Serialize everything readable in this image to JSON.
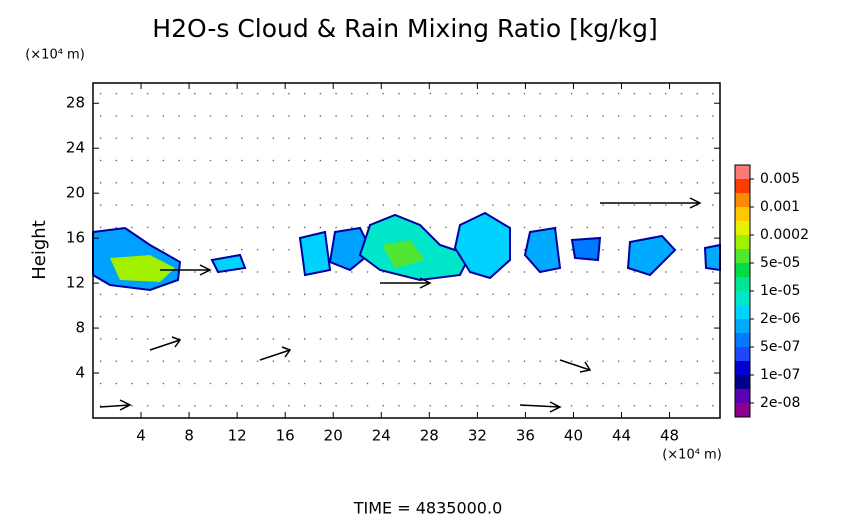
{
  "chart_data": {
    "type": "contour",
    "title": "H2O-s Cloud & Rain Mixing Ratio [kg/kg]",
    "y_label": "Height",
    "y_unit": "(×10⁴ m)",
    "x_unit": "(×10⁴ m)",
    "time_label": "TIME = 4835000.0",
    "xlim": [
      0,
      52.2
    ],
    "ylim": [
      0,
      29.8
    ],
    "xticks": [
      4,
      8,
      12,
      16,
      20,
      24,
      28,
      32,
      36,
      40,
      44,
      48
    ],
    "yticks": [
      4,
      8,
      12,
      16,
      20,
      24,
      28
    ],
    "colorbar": {
      "colors": [
        "#8b008b",
        "#5a00b4",
        "#00008b",
        "#0000d2",
        "#1e46ff",
        "#0078ff",
        "#00aaff",
        "#00d2ff",
        "#00e6c8",
        "#00e696",
        "#00dc46",
        "#50e632",
        "#a0f000",
        "#e6f000",
        "#ffc800",
        "#ff8c00",
        "#ff3c00",
        "#ff7878"
      ],
      "levels": [
        {
          "value": 2e-08,
          "label": "2e-08"
        },
        {
          "value": 1e-07,
          "label": "1e-07"
        },
        {
          "value": 5e-07,
          "label": "5e-07"
        },
        {
          "value": 2e-06,
          "label": "2e-06"
        },
        {
          "value": 1e-05,
          "label": "1e-05"
        },
        {
          "value": 5e-05,
          "label": "5e-05"
        },
        0.0002,
        0.001,
        0.005
      ]
    }
  }
}
